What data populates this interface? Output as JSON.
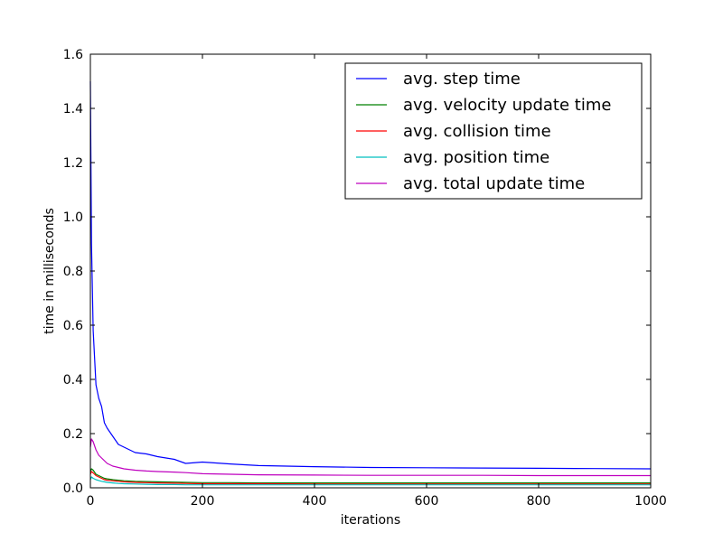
{
  "chart_data": {
    "type": "line",
    "title": "",
    "xlabel": "iterations",
    "ylabel": "time in milliseconds",
    "xlim": [
      0,
      1000
    ],
    "ylim": [
      0.0,
      1.6
    ],
    "x_ticks": [
      "0",
      "200",
      "400",
      "600",
      "800",
      "1000"
    ],
    "y_ticks": [
      "0.0",
      "0.2",
      "0.4",
      "0.6",
      "0.8",
      "1.0",
      "1.2",
      "1.4",
      "1.6"
    ],
    "grid": false,
    "legend_position": "top-right",
    "x": [
      0,
      2,
      5,
      10,
      15,
      20,
      25,
      30,
      40,
      50,
      60,
      80,
      100,
      120,
      150,
      170,
      200,
      250,
      300,
      400,
      500,
      600,
      700,
      800,
      900,
      1000
    ],
    "series": [
      {
        "name": "avg. step time",
        "color": "#0000ff",
        "values": [
          1.5,
          0.9,
          0.58,
          0.38,
          0.33,
          0.3,
          0.24,
          0.22,
          0.19,
          0.16,
          0.15,
          0.13,
          0.125,
          0.115,
          0.105,
          0.09,
          0.095,
          0.088,
          0.082,
          0.078,
          0.075,
          0.074,
          0.073,
          0.072,
          0.071,
          0.07
        ]
      },
      {
        "name": "avg. velocity update time",
        "color": "#008000",
        "values": [
          0.06,
          0.07,
          0.065,
          0.05,
          0.045,
          0.04,
          0.035,
          0.033,
          0.03,
          0.028,
          0.026,
          0.024,
          0.023,
          0.022,
          0.021,
          0.02,
          0.019,
          0.019,
          0.018,
          0.018,
          0.018,
          0.018,
          0.018,
          0.018,
          0.018,
          0.018
        ]
      },
      {
        "name": "avg. collision time",
        "color": "#ff0000",
        "values": [
          0.05,
          0.06,
          0.055,
          0.045,
          0.04,
          0.035,
          0.03,
          0.028,
          0.026,
          0.024,
          0.022,
          0.02,
          0.019,
          0.018,
          0.017,
          0.016,
          0.015,
          0.015,
          0.015,
          0.014,
          0.014,
          0.014,
          0.014,
          0.014,
          0.014,
          0.014
        ]
      },
      {
        "name": "avg. position time",
        "color": "#00bfbf",
        "values": [
          0.03,
          0.04,
          0.035,
          0.03,
          0.027,
          0.024,
          0.022,
          0.02,
          0.018,
          0.016,
          0.015,
          0.014,
          0.013,
          0.012,
          0.012,
          0.011,
          0.011,
          0.011,
          0.011,
          0.011,
          0.011,
          0.011,
          0.011,
          0.011,
          0.011,
          0.011
        ]
      },
      {
        "name": "avg. total update time",
        "color": "#bf00bf",
        "values": [
          0.15,
          0.18,
          0.17,
          0.14,
          0.12,
          0.11,
          0.1,
          0.09,
          0.08,
          0.075,
          0.07,
          0.065,
          0.062,
          0.06,
          0.058,
          0.056,
          0.052,
          0.05,
          0.048,
          0.047,
          0.046,
          0.046,
          0.046,
          0.045,
          0.045,
          0.045
        ]
      }
    ]
  }
}
